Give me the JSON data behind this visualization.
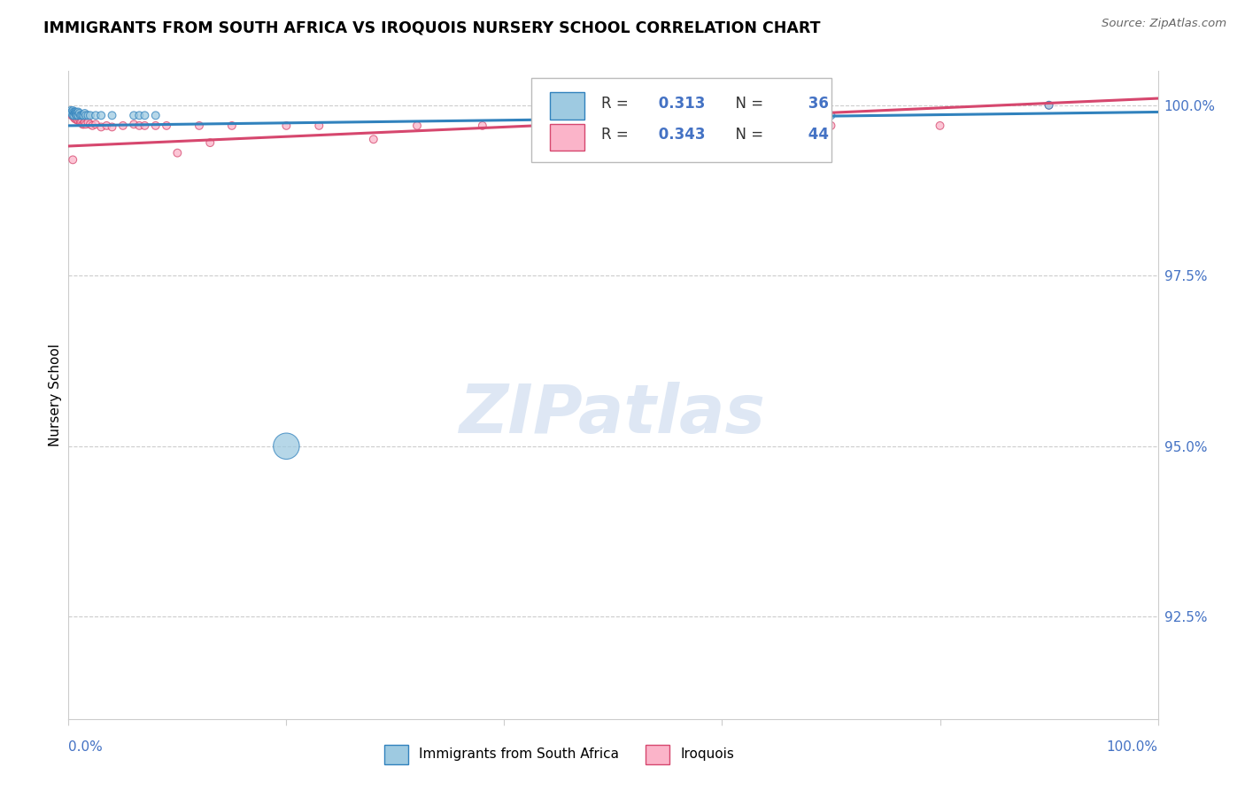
{
  "title": "IMMIGRANTS FROM SOUTH AFRICA VS IROQUOIS NURSERY SCHOOL CORRELATION CHART",
  "source": "Source: ZipAtlas.com",
  "ylabel": "Nursery School",
  "legend_label1": "Immigrants from South Africa",
  "legend_label2": "Iroquois",
  "R1": 0.313,
  "N1": 36,
  "R2": 0.343,
  "N2": 44,
  "color_blue": "#9ecae1",
  "color_blue_line": "#3182bd",
  "color_pink": "#fbb4c9",
  "color_pink_line": "#d6476e",
  "color_axis_label": "#4472C4",
  "watermark_text": "ZIPatlas",
  "ytick_labels": [
    "92.5%",
    "95.0%",
    "97.5%",
    "100.0%"
  ],
  "ytick_values": [
    0.925,
    0.95,
    0.975,
    1.0
  ],
  "xlim": [
    0.0,
    1.0
  ],
  "ylim": [
    0.91,
    1.005
  ],
  "blue_x": [
    0.002,
    0.003,
    0.003,
    0.004,
    0.004,
    0.005,
    0.005,
    0.006,
    0.006,
    0.007,
    0.007,
    0.007,
    0.008,
    0.008,
    0.009,
    0.009,
    0.01,
    0.011,
    0.012,
    0.013,
    0.014,
    0.015,
    0.016,
    0.018,
    0.02,
    0.025,
    0.03,
    0.04,
    0.06,
    0.065,
    0.07,
    0.08,
    0.2,
    0.55,
    0.7,
    0.9
  ],
  "blue_y": [
    0.9992,
    0.999,
    0.9988,
    0.9992,
    0.9985,
    0.999,
    0.9985,
    0.999,
    0.9988,
    0.999,
    0.9988,
    0.9985,
    0.9988,
    0.9985,
    0.999,
    0.9985,
    0.9988,
    0.9985,
    0.9985,
    0.9985,
    0.9985,
    0.9988,
    0.9985,
    0.9985,
    0.9985,
    0.9985,
    0.9985,
    0.9985,
    0.9985,
    0.9985,
    0.9985,
    0.9985,
    0.95,
    0.9985,
    0.9985,
    1.0
  ],
  "blue_sizes": [
    40,
    40,
    40,
    40,
    40,
    40,
    40,
    40,
    40,
    40,
    40,
    40,
    40,
    40,
    40,
    40,
    40,
    40,
    40,
    40,
    40,
    40,
    40,
    40,
    40,
    40,
    40,
    40,
    40,
    40,
    40,
    40,
    450,
    40,
    40,
    40
  ],
  "pink_x": [
    0.002,
    0.003,
    0.004,
    0.005,
    0.006,
    0.007,
    0.008,
    0.009,
    0.01,
    0.011,
    0.012,
    0.013,
    0.014,
    0.015,
    0.016,
    0.018,
    0.02,
    0.022,
    0.025,
    0.03,
    0.035,
    0.04,
    0.05,
    0.06,
    0.065,
    0.07,
    0.08,
    0.09,
    0.1,
    0.12,
    0.13,
    0.15,
    0.2,
    0.23,
    0.28,
    0.32,
    0.38,
    0.44,
    0.55,
    0.6,
    0.7,
    0.8,
    0.9,
    0.004
  ],
  "pink_y": [
    0.9988,
    0.9985,
    0.9985,
    0.9982,
    0.998,
    0.998,
    0.9978,
    0.9978,
    0.998,
    0.9975,
    0.9975,
    0.9972,
    0.9972,
    0.9975,
    0.9972,
    0.9975,
    0.9972,
    0.997,
    0.9972,
    0.9968,
    0.997,
    0.9968,
    0.997,
    0.9972,
    0.997,
    0.997,
    0.997,
    0.997,
    0.993,
    0.997,
    0.9945,
    0.997,
    0.997,
    0.997,
    0.995,
    0.997,
    0.997,
    0.997,
    0.997,
    0.997,
    0.997,
    0.997,
    1.0,
    0.992
  ],
  "pink_sizes": [
    40,
    40,
    40,
    40,
    40,
    40,
    40,
    40,
    40,
    40,
    40,
    40,
    40,
    40,
    40,
    40,
    40,
    40,
    40,
    40,
    40,
    40,
    40,
    40,
    40,
    40,
    40,
    40,
    40,
    40,
    40,
    40,
    40,
    40,
    40,
    40,
    40,
    40,
    40,
    40,
    40,
    40,
    40,
    40
  ],
  "trend_blue_x0": 0.0,
  "trend_blue_x1": 1.0,
  "trend_blue_y0": 0.997,
  "trend_blue_y1": 0.999,
  "trend_pink_x0": 0.0,
  "trend_pink_x1": 1.0,
  "trend_pink_y0": 0.994,
  "trend_pink_y1": 1.001
}
